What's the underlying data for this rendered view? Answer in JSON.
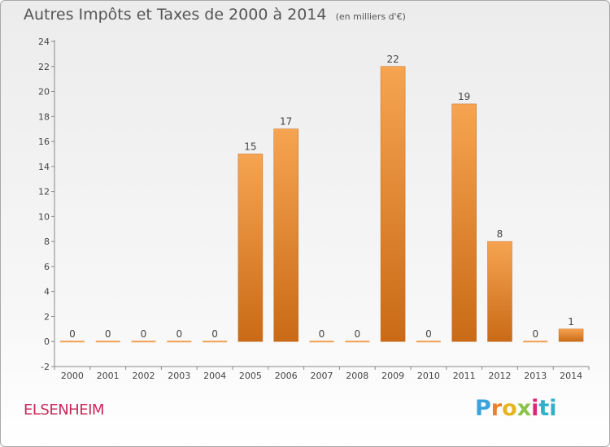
{
  "chart_data": {
    "type": "bar",
    "title": "Autres Impôts et Taxes de 2000 à 2014",
    "unit_note": "(en milliers d'€)",
    "categories": [
      "2000",
      "2001",
      "2002",
      "2003",
      "2004",
      "2005",
      "2006",
      "2007",
      "2008",
      "2009",
      "2010",
      "2011",
      "2012",
      "2013",
      "2014"
    ],
    "values": [
      0,
      0,
      0,
      0,
      0,
      15,
      17,
      0,
      0,
      22,
      0,
      19,
      8,
      0,
      1
    ],
    "ylim": [
      -2,
      24
    ],
    "yticks": [
      -2,
      0,
      2,
      4,
      6,
      8,
      10,
      12,
      14,
      16,
      18,
      20,
      22,
      24
    ],
    "grid": false,
    "colors": {
      "bar_light": "#f6a451",
      "bar_dark": "#c96a16",
      "title": "#555555",
      "place": "#c8285a"
    }
  },
  "place_name": "ELSENHEIM",
  "logo": {
    "text": "Proxiti",
    "letters": [
      "P",
      "r",
      "o",
      "x",
      "i",
      "ti"
    ]
  }
}
